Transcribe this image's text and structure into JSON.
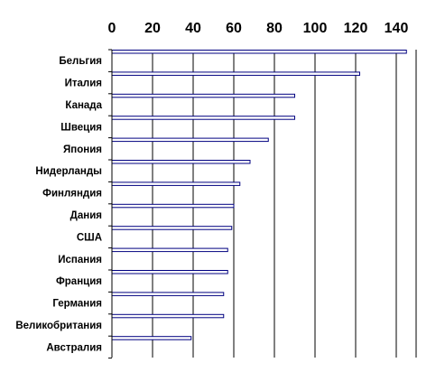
{
  "chart_data": {
    "type": "bar",
    "orientation": "horizontal",
    "categories": [
      "Бельгия",
      "Италия",
      "Канада",
      "Швеция",
      "Япония",
      "Нидерланды",
      "Финляндия",
      "Дания",
      "США",
      "Испания",
      "Франция",
      "Германия",
      "Великобритания",
      "Австралия"
    ],
    "values": [
      145,
      122,
      90,
      90,
      77,
      68,
      63,
      60,
      59,
      57,
      57,
      55,
      55,
      39
    ],
    "x_ticks": [
      "0",
      "20",
      "40",
      "60",
      "80",
      "100",
      "120",
      "140"
    ],
    "xlim": [
      0,
      150
    ],
    "x_axis_position": "top",
    "grid": true,
    "title": "",
    "xlabel": "",
    "ylabel": "",
    "colors": {
      "bar_fill": "#ffffff",
      "bar_edge": "#000080",
      "grid": "#000000",
      "text": "#000000"
    }
  }
}
